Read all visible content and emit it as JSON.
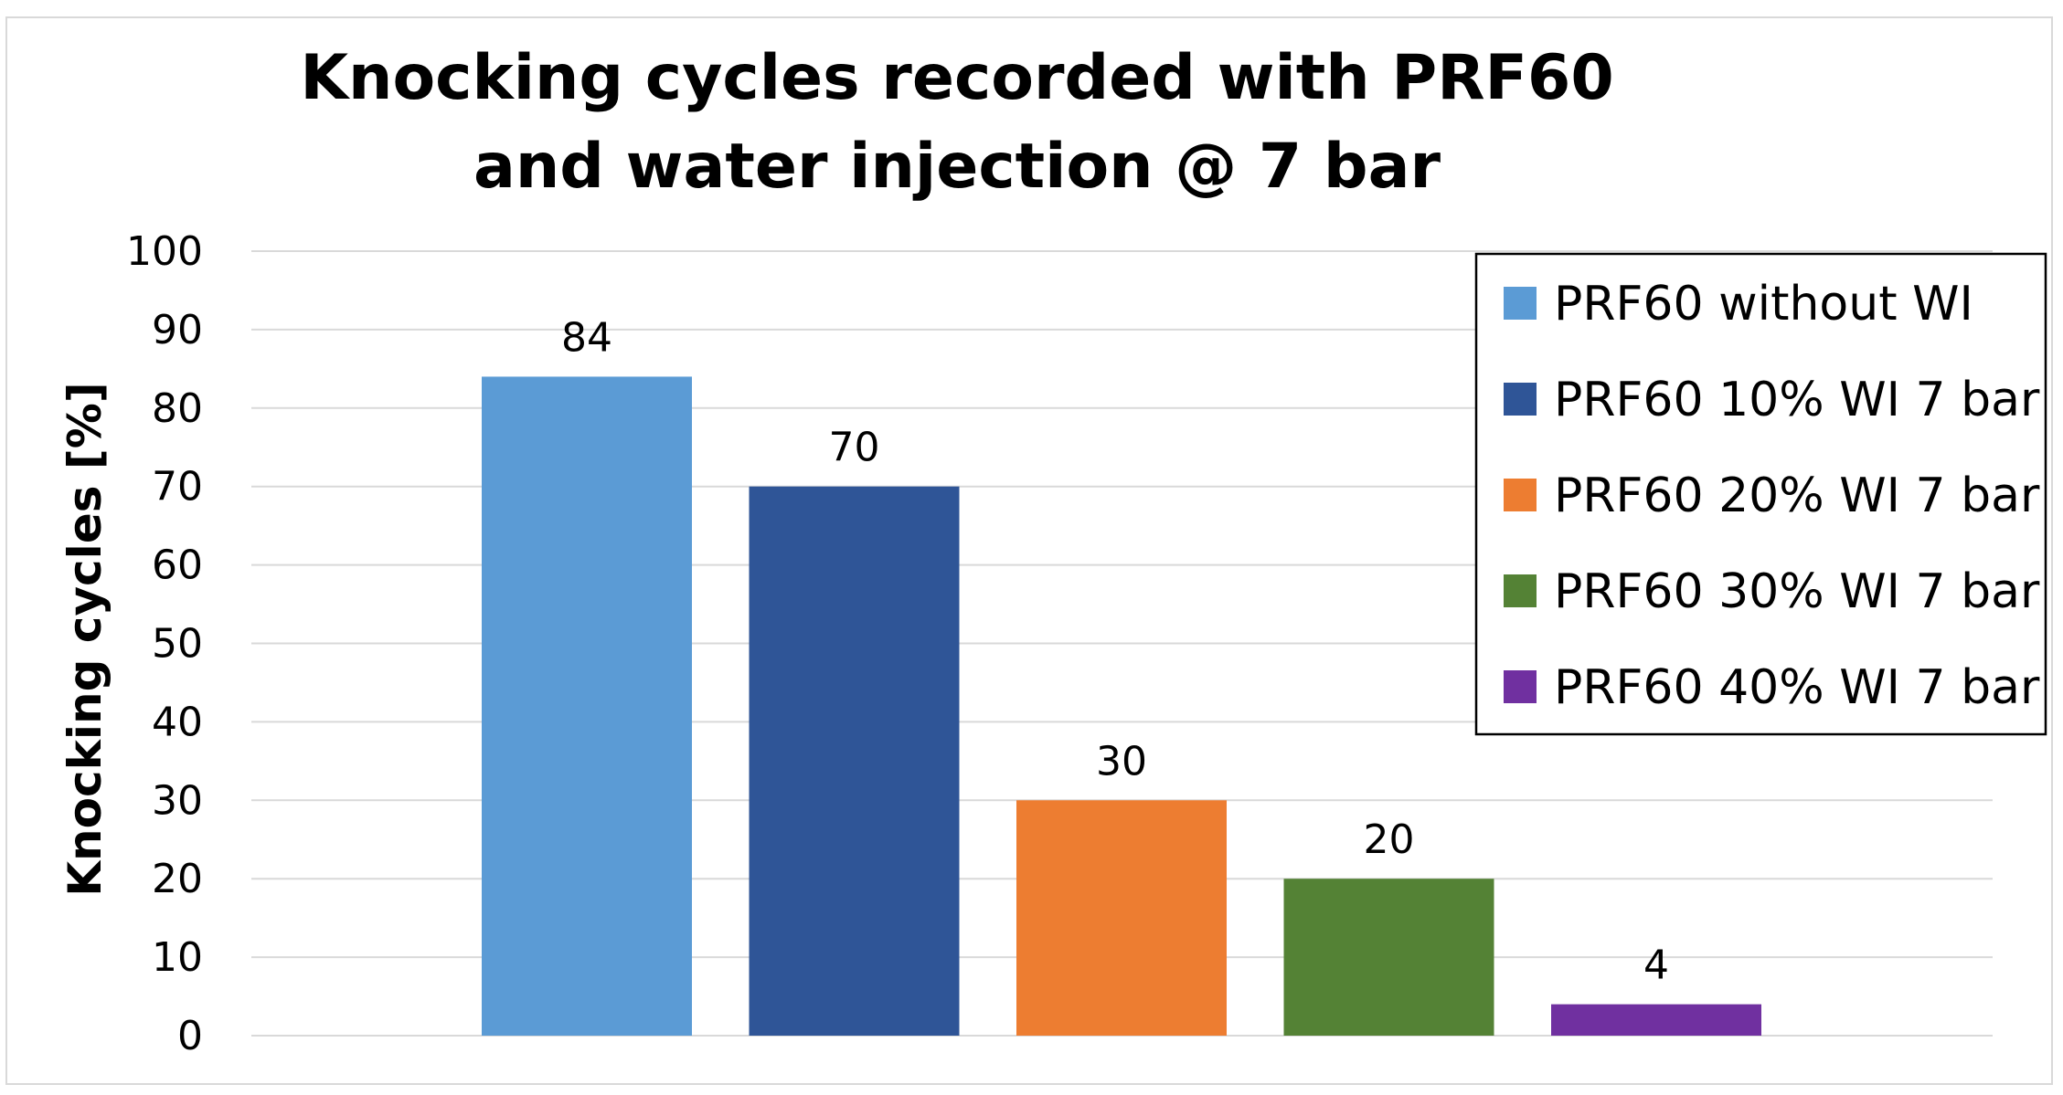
{
  "chart_data": {
    "type": "bar",
    "title_lines": [
      "Knocking cycles recorded with PRF60",
      "and water injection @ 7 bar"
    ],
    "xlabel": "",
    "ylabel": "Knocking cycles [%]",
    "ylim": [
      0,
      100
    ],
    "yticks": [
      0,
      10,
      20,
      30,
      40,
      50,
      60,
      70,
      80,
      90,
      100
    ],
    "grid": true,
    "legend_position": "top-right",
    "series": [
      {
        "name": "PRF60 without WI",
        "value": 84,
        "label": "84",
        "color": "#5b9bd5"
      },
      {
        "name": "PRF60 10% WI 7 bar",
        "value": 70,
        "label": "70",
        "color": "#2f5597"
      },
      {
        "name": "PRF60 20% WI 7 bar",
        "value": 30,
        "label": "30",
        "color": "#ed7d31"
      },
      {
        "name": "PRF60 30% WI 7 bar",
        "value": 20,
        "label": "20",
        "color": "#548235"
      },
      {
        "name": "PRF60 40% WI 7 bar",
        "value": 4,
        "label": "4",
        "color": "#7030a0"
      }
    ]
  }
}
